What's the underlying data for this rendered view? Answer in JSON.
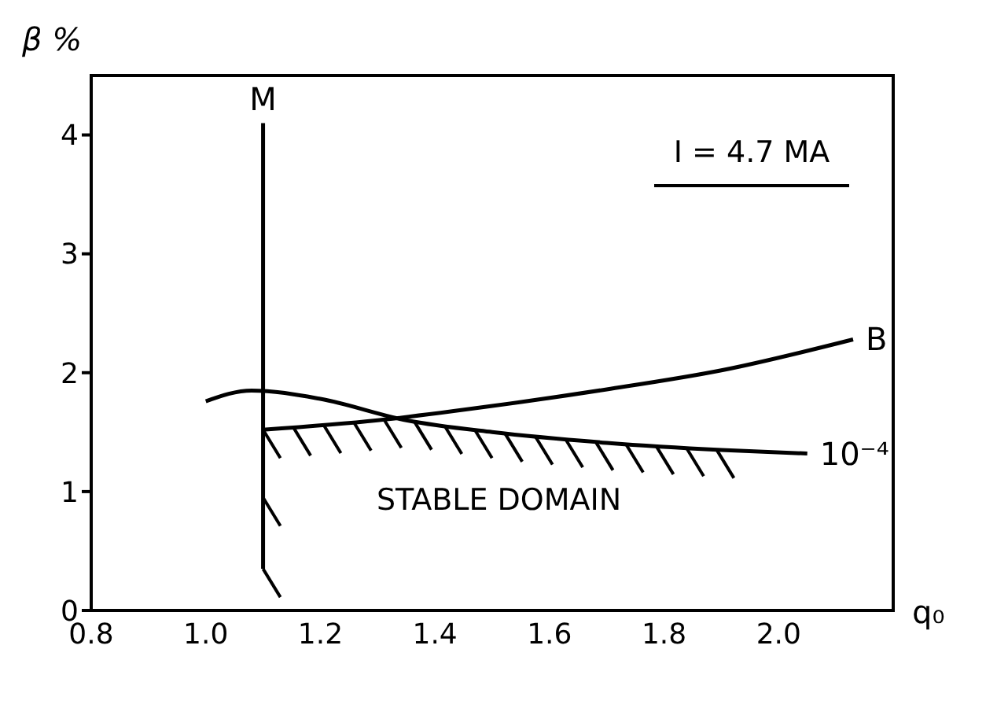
{
  "chart_data": {
    "type": "line",
    "xlabel": "q₀",
    "ylabel": "β %",
    "xlim": [
      0.8,
      2.2
    ],
    "xticks": [
      {
        "value": 0.8,
        "label": "0.8"
      },
      {
        "value": 1,
        "label": "1.0"
      },
      1.2,
      1.4,
      1.6,
      1.8,
      {
        "value": 2,
        "label": "2.0"
      }
    ],
    "ylim": [
      0,
      4.5
    ],
    "yticks": [
      0,
      1,
      2,
      3,
      4
    ],
    "grid": false,
    "marker": "none",
    "line_style": "solid",
    "annotations": [
      "I = 4.7 MA",
      "STABLE DOMAIN"
    ],
    "series": [
      {
        "name": "M",
        "color": "#000000",
        "x": [
          1.1,
          1.1
        ],
        "values": [
          0.35,
          4.1
        ]
      },
      {
        "name": "B",
        "color": "#000000",
        "x": [
          1.1,
          1.3,
          1.5,
          1.7,
          1.9,
          2.13
        ],
        "values": [
          1.52,
          1.6,
          1.72,
          1.86,
          2.02,
          2.28
        ]
      },
      {
        "name": "10⁻⁴",
        "color": "#000000",
        "x": [
          1.0,
          1.08,
          1.2,
          1.35,
          1.5,
          1.7,
          1.9,
          2.05
        ],
        "values": [
          1.76,
          1.85,
          1.78,
          1.6,
          1.5,
          1.41,
          1.35,
          1.32
        ]
      }
    ]
  }
}
